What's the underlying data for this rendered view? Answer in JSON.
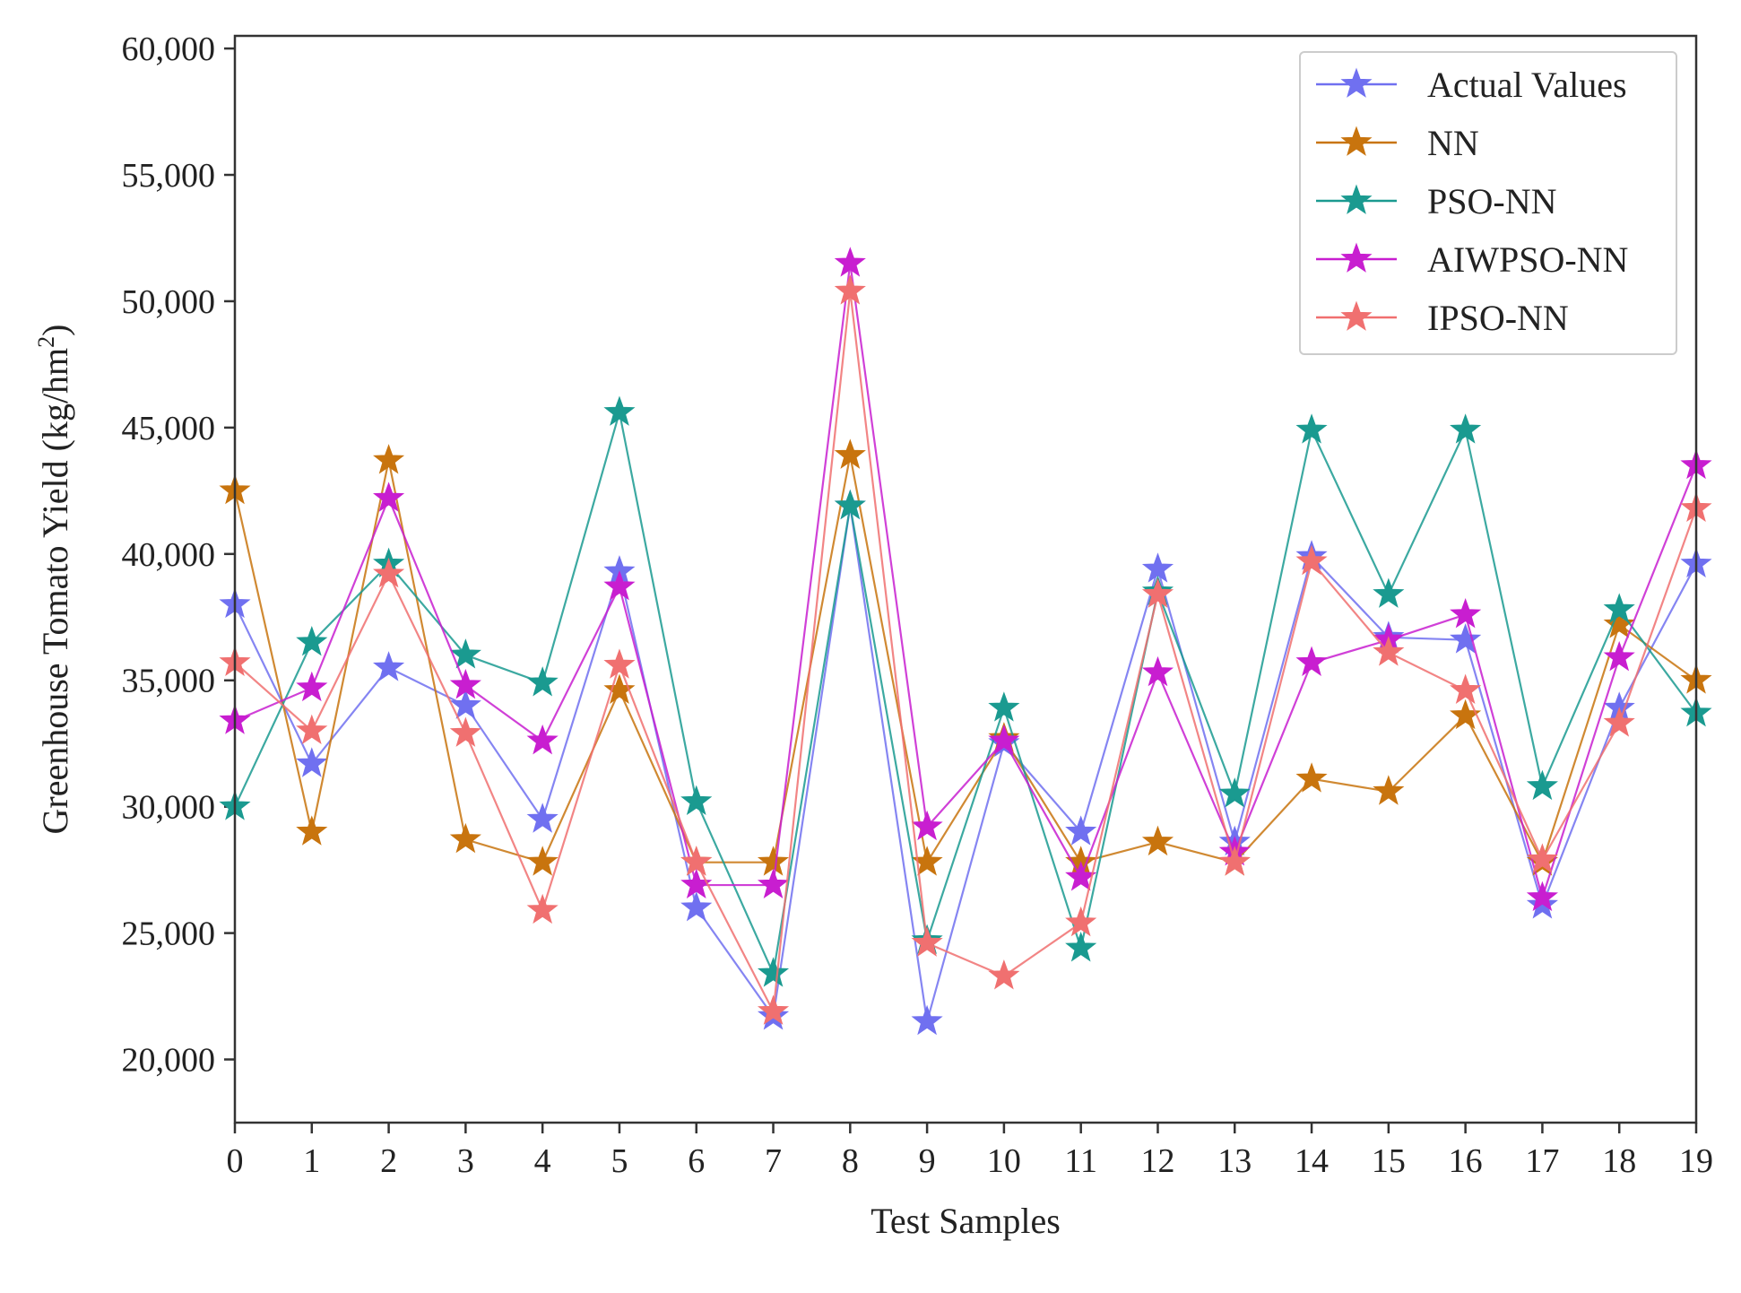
{
  "chart_data": {
    "type": "line",
    "title": "",
    "xlabel": "Test Samples",
    "ylabel": "Greenhouse Tomato Yield (kg/hm²)",
    "ylabel_parts": {
      "main": "Greenhouse Tomato Yield (kg/hm",
      "sup": "2",
      "tail": ")"
    },
    "x": [
      0,
      1,
      2,
      3,
      4,
      5,
      6,
      7,
      8,
      9,
      10,
      11,
      12,
      13,
      14,
      15,
      16,
      17,
      18,
      19
    ],
    "xlim": [
      0,
      19
    ],
    "ylim": [
      17500,
      60500
    ],
    "yticks": [
      20000,
      25000,
      30000,
      35000,
      40000,
      45000,
      50000,
      55000,
      60000
    ],
    "ytick_labels": [
      "20,000",
      "25,000",
      "30,000",
      "35,000",
      "40,000",
      "45,000",
      "50,000",
      "55,000",
      "60,000"
    ],
    "xtick_labels": [
      "0",
      "1",
      "2",
      "3",
      "4",
      "5",
      "6",
      "7",
      "8",
      "9",
      "10",
      "11",
      "12",
      "13",
      "14",
      "15",
      "16",
      "17",
      "18",
      "19"
    ],
    "grid": false,
    "legend_position": "top-right",
    "marker": "star",
    "series": [
      {
        "name": "Actual Values",
        "color": "#7070f0",
        "values": [
          38000,
          31700,
          35500,
          34000,
          29500,
          39300,
          26000,
          21700,
          41900,
          21500,
          32500,
          29000,
          39400,
          28600,
          39900,
          36700,
          36600,
          26100,
          33900,
          39600
        ]
      },
      {
        "name": "NN",
        "color": "#c8740e",
        "values": [
          42500,
          29000,
          43700,
          28700,
          27800,
          34600,
          27800,
          27800,
          43900,
          27800,
          32700,
          27800,
          28600,
          27800,
          31100,
          30600,
          33600,
          27800,
          37200,
          35000
        ]
      },
      {
        "name": "PSO-NN",
        "color": "#1a9a90",
        "values": [
          30000,
          36500,
          39600,
          36000,
          34900,
          45600,
          30200,
          23400,
          41900,
          24700,
          33900,
          24400,
          38500,
          30500,
          44900,
          38400,
          44900,
          30800,
          37800,
          33700
        ]
      },
      {
        "name": "AIWPSO-NN",
        "color": "#c81ed0",
        "values": [
          33400,
          34700,
          42200,
          34800,
          32600,
          38700,
          26900,
          26900,
          51500,
          29200,
          32600,
          27200,
          35300,
          28200,
          35700,
          36600,
          37600,
          26400,
          35900,
          43500
        ]
      },
      {
        "name": "IPSO-NN",
        "color": "#f07070",
        "values": [
          35700,
          33000,
          39200,
          32900,
          25900,
          35600,
          27800,
          21900,
          50400,
          24600,
          23300,
          25400,
          38400,
          27800,
          39700,
          36100,
          34600,
          27900,
          33300,
          41800
        ]
      }
    ]
  }
}
